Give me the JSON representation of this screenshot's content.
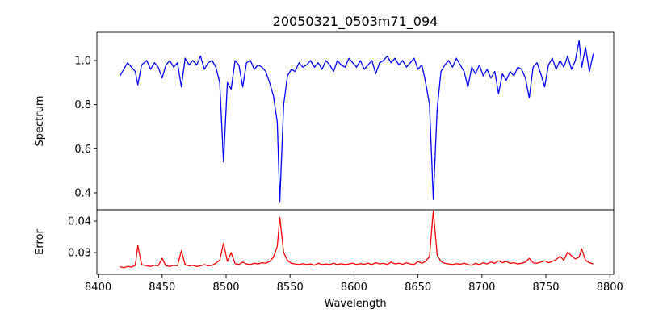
{
  "chart_data": {
    "type": "line",
    "title": "20050321_0503m71_094",
    "xlabel": "Wavelength",
    "xlim": [
      8399,
      8803
    ],
    "xticks": [
      8400,
      8450,
      8500,
      8550,
      8600,
      8650,
      8700,
      8750,
      8800
    ],
    "panels": [
      {
        "name": "spectrum",
        "ylabel": "Spectrum",
        "ylim": [
          0.323,
          1.128
        ],
        "yticks": [
          0.4,
          0.6,
          0.8,
          1.0
        ],
        "tick_labels": [
          "0.4",
          "0.6",
          "0.8",
          "1.0"
        ],
        "color": "#0000ff"
      },
      {
        "name": "error",
        "ylabel": "Error",
        "ylim": [
          0.0231,
          0.0436
        ],
        "yticks": [
          0.03,
          0.04
        ],
        "tick_labels": [
          "0.03",
          "0.04"
        ],
        "color": "#ff0000"
      }
    ],
    "columns": [
      "wavelength",
      "spectrum",
      "error"
    ],
    "points": [
      [
        8417,
        0.93,
        0.0255
      ],
      [
        8420,
        0.96,
        0.0252
      ],
      [
        8423,
        0.99,
        0.0256
      ],
      [
        8426,
        0.97,
        0.0254
      ],
      [
        8429,
        0.95,
        0.026
      ],
      [
        8431,
        0.89,
        0.0322
      ],
      [
        8434,
        0.98,
        0.0262
      ],
      [
        8438,
        1.0,
        0.0258
      ],
      [
        8441,
        0.96,
        0.0256
      ],
      [
        8444,
        0.99,
        0.026
      ],
      [
        8447,
        0.97,
        0.0258
      ],
      [
        8450,
        0.92,
        0.0282
      ],
      [
        8453,
        0.98,
        0.0258
      ],
      [
        8456,
        1.0,
        0.0256
      ],
      [
        8459,
        0.97,
        0.026
      ],
      [
        8462,
        0.99,
        0.0258
      ],
      [
        8465,
        0.88,
        0.0306
      ],
      [
        8468,
        1.01,
        0.0262
      ],
      [
        8471,
        0.98,
        0.0258
      ],
      [
        8474,
        1.0,
        0.026
      ],
      [
        8477,
        0.98,
        0.0256
      ],
      [
        8480,
        1.02,
        0.0258
      ],
      [
        8483,
        0.96,
        0.0262
      ],
      [
        8486,
        0.99,
        0.0258
      ],
      [
        8489,
        1.0,
        0.026
      ],
      [
        8492,
        0.97,
        0.0266
      ],
      [
        8495,
        0.9,
        0.0276
      ],
      [
        8498,
        0.54,
        0.033
      ],
      [
        8501,
        0.9,
        0.0272
      ],
      [
        8504,
        0.87,
        0.03
      ],
      [
        8507,
        1.0,
        0.0265
      ],
      [
        8510,
        0.98,
        0.0262
      ],
      [
        8513,
        0.88,
        0.027
      ],
      [
        8516,
        0.99,
        0.0264
      ],
      [
        8519,
        1.0,
        0.0262
      ],
      [
        8522,
        0.96,
        0.0266
      ],
      [
        8525,
        0.98,
        0.0264
      ],
      [
        8528,
        0.97,
        0.0268
      ],
      [
        8531,
        0.95,
        0.0266
      ],
      [
        8534,
        0.9,
        0.0272
      ],
      [
        8537,
        0.84,
        0.0285
      ],
      [
        8540,
        0.72,
        0.032
      ],
      [
        8542,
        0.36,
        0.0412
      ],
      [
        8545,
        0.8,
        0.03
      ],
      [
        8548,
        0.93,
        0.0275
      ],
      [
        8551,
        0.96,
        0.0266
      ],
      [
        8554,
        0.95,
        0.0264
      ],
      [
        8557,
        0.99,
        0.0262
      ],
      [
        8560,
        0.97,
        0.0265
      ],
      [
        8563,
        0.98,
        0.0262
      ],
      [
        8566,
        1.0,
        0.0264
      ],
      [
        8569,
        0.97,
        0.026
      ],
      [
        8572,
        0.99,
        0.0266
      ],
      [
        8575,
        0.96,
        0.0262
      ],
      [
        8578,
        1.0,
        0.0264
      ],
      [
        8581,
        0.98,
        0.0262
      ],
      [
        8584,
        0.95,
        0.0266
      ],
      [
        8587,
        1.0,
        0.0262
      ],
      [
        8590,
        0.98,
        0.0265
      ],
      [
        8593,
        0.97,
        0.0262
      ],
      [
        8596,
        1.01,
        0.0264
      ],
      [
        8599,
        0.99,
        0.0266
      ],
      [
        8602,
        0.97,
        0.0262
      ],
      [
        8605,
        1.0,
        0.0265
      ],
      [
        8608,
        0.96,
        0.0263
      ],
      [
        8611,
        0.98,
        0.0266
      ],
      [
        8614,
        1.0,
        0.0262
      ],
      [
        8617,
        0.94,
        0.0268
      ],
      [
        8620,
        0.99,
        0.0264
      ],
      [
        8623,
        1.0,
        0.0266
      ],
      [
        8626,
        1.02,
        0.0262
      ],
      [
        8629,
        0.99,
        0.027
      ],
      [
        8632,
        1.01,
        0.0264
      ],
      [
        8635,
        0.98,
        0.0266
      ],
      [
        8638,
        1.0,
        0.0263
      ],
      [
        8641,
        0.97,
        0.0268
      ],
      [
        8644,
        0.99,
        0.0264
      ],
      [
        8647,
        1.01,
        0.0262
      ],
      [
        8650,
        0.96,
        0.0272
      ],
      [
        8653,
        0.98,
        0.0266
      ],
      [
        8656,
        0.9,
        0.0272
      ],
      [
        8659,
        0.8,
        0.0288
      ],
      [
        8662,
        0.37,
        0.0432
      ],
      [
        8665,
        0.78,
        0.0292
      ],
      [
        8668,
        0.95,
        0.0272
      ],
      [
        8671,
        0.98,
        0.0266
      ],
      [
        8674,
        1.0,
        0.0264
      ],
      [
        8677,
        0.97,
        0.0262
      ],
      [
        8680,
        1.01,
        0.0265
      ],
      [
        8683,
        0.98,
        0.0263
      ],
      [
        8686,
        0.95,
        0.0266
      ],
      [
        8689,
        0.88,
        0.0262
      ],
      [
        8692,
        0.97,
        0.026
      ],
      [
        8695,
        0.94,
        0.0266
      ],
      [
        8698,
        0.98,
        0.0262
      ],
      [
        8701,
        0.93,
        0.0268
      ],
      [
        8704,
        0.96,
        0.0264
      ],
      [
        8707,
        0.92,
        0.027
      ],
      [
        8710,
        0.95,
        0.0266
      ],
      [
        8713,
        0.85,
        0.0274
      ],
      [
        8716,
        0.94,
        0.0268
      ],
      [
        8719,
        0.91,
        0.0272
      ],
      [
        8722,
        0.95,
        0.0266
      ],
      [
        8725,
        0.93,
        0.0268
      ],
      [
        8728,
        0.97,
        0.0264
      ],
      [
        8731,
        0.96,
        0.0266
      ],
      [
        8734,
        0.92,
        0.027
      ],
      [
        8737,
        0.83,
        0.0282
      ],
      [
        8740,
        0.97,
        0.0268
      ],
      [
        8743,
        0.99,
        0.0266
      ],
      [
        8746,
        0.94,
        0.027
      ],
      [
        8749,
        0.88,
        0.0274
      ],
      [
        8752,
        0.98,
        0.0268
      ],
      [
        8755,
        1.01,
        0.0272
      ],
      [
        8758,
        0.96,
        0.0278
      ],
      [
        8761,
        1.0,
        0.0288
      ],
      [
        8764,
        0.97,
        0.0276
      ],
      [
        8767,
        1.02,
        0.0302
      ],
      [
        8770,
        0.96,
        0.029
      ],
      [
        8773,
        1.0,
        0.028
      ],
      [
        8776,
        1.09,
        0.0286
      ],
      [
        8778,
        0.97,
        0.0312
      ],
      [
        8781,
        1.06,
        0.0275
      ],
      [
        8784,
        0.95,
        0.0268
      ],
      [
        8787,
        1.03,
        0.0264
      ]
    ]
  }
}
